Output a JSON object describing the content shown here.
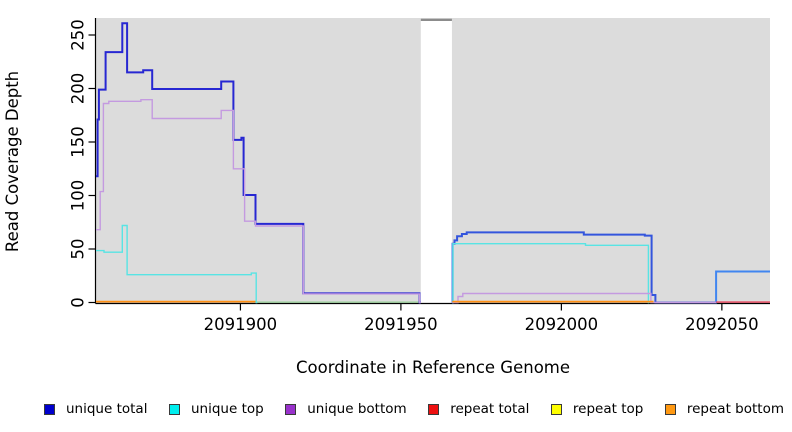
{
  "chart_data": {
    "type": "line",
    "title": "",
    "xlabel": "Coordinate in Reference Genome",
    "ylabel": "Read Coverage Depth",
    "xlim": [
      2091855,
      2092065
    ],
    "ylim": [
      0,
      266
    ],
    "x_ticks": [
      2091900,
      2091950,
      2092000,
      2092050
    ],
    "y_ticks": [
      0,
      50,
      100,
      150,
      200,
      250
    ],
    "plot_background": "#dcdcdc",
    "gap_region": {
      "x_start": 2091956.2,
      "x_end": 2091965.9,
      "top_bar_color": "#8c8c8c"
    },
    "legend_position": "bottom",
    "grid": false,
    "legend": [
      {
        "label": "unique total",
        "color": "#0000cd"
      },
      {
        "label": "unique top",
        "color": "#00eeee"
      },
      {
        "label": "unique bottom",
        "color": "#9932cc"
      },
      {
        "label": "repeat total",
        "color": "#ee1111"
      },
      {
        "label": "repeat top",
        "color": "#ffff00"
      },
      {
        "label": "repeat bottom",
        "color": "#ff9912"
      }
    ],
    "series": [
      {
        "name": "baseline-green",
        "legend": null,
        "color": "#96cf96",
        "width": 1.3,
        "steps": [
          [
            2091904.7,
            0.4
          ]
        ],
        "end": 2091956.2
      },
      {
        "name": "unique-total-left",
        "legend": "unique total",
        "color": "#2727d2",
        "width": 2,
        "steps": [
          [
            2091855,
            118
          ],
          [
            2091855.5,
            171
          ],
          [
            2091855.9,
            199
          ],
          [
            2091858,
            234
          ],
          [
            2091863.2,
            261
          ],
          [
            2091864.7,
            215
          ],
          [
            2091869.7,
            217
          ],
          [
            2091872.5,
            199.5
          ],
          [
            2091894,
            206.5
          ],
          [
            2091897.8,
            152
          ],
          [
            2091900.3,
            154
          ],
          [
            2091901,
            100.5
          ],
          [
            2091904.7,
            73.5
          ],
          [
            2091919.6,
            8.5
          ],
          [
            2091955.8,
            0
          ]
        ],
        "end": 2091956.2
      },
      {
        "name": "unique-total-right",
        "legend": "unique total",
        "color": "#3355dd",
        "width": 2,
        "steps": [
          [
            2091965.9,
            0
          ],
          [
            2091966.1,
            55
          ],
          [
            2091966.7,
            58
          ],
          [
            2091967.5,
            62
          ],
          [
            2091969,
            64
          ],
          [
            2091970.5,
            65.5
          ],
          [
            2092007,
            63.5
          ],
          [
            2092026,
            62.5
          ],
          [
            2092028.1,
            7
          ],
          [
            2092029.3,
            0
          ]
        ],
        "end": 2092048.2
      },
      {
        "name": "unique-total-far-right",
        "legend": "unique total",
        "color": "#4186f0",
        "width": 2,
        "steps": [
          [
            2092048.0,
            0
          ],
          [
            2092048.2,
            29
          ]
        ],
        "end": 2092065
      },
      {
        "name": "unique-top-left",
        "legend": "unique top",
        "color": "#58e4e4",
        "width": 1.4,
        "steps": [
          [
            2091855,
            48.5
          ],
          [
            2091857.5,
            47
          ],
          [
            2091863.2,
            72
          ],
          [
            2091864.7,
            26
          ],
          [
            2091903.4,
            27.5
          ],
          [
            2091904.9,
            0
          ]
        ],
        "end": 2091905.3
      },
      {
        "name": "unique-top-right",
        "legend": "unique top",
        "color": "#58e4e4",
        "width": 1.4,
        "steps": [
          [
            2091966,
            0
          ],
          [
            2091966.2,
            55
          ],
          [
            2092007.5,
            53.5
          ],
          [
            2092027.1,
            0
          ]
        ],
        "end": 2092027.4
      },
      {
        "name": "unique-bottom-left",
        "legend": "unique bottom",
        "color": "#c49ae0",
        "width": 1.4,
        "steps": [
          [
            2091855,
            68
          ],
          [
            2091856.3,
            103.6
          ],
          [
            2091857.3,
            186
          ],
          [
            2091859,
            188
          ],
          [
            2091869,
            189.5
          ],
          [
            2091872.5,
            172
          ],
          [
            2091894,
            179.5
          ],
          [
            2091897.8,
            125
          ],
          [
            2091901.3,
            76
          ],
          [
            2091904.7,
            71.5
          ],
          [
            2091919.6,
            8
          ],
          [
            2091955.8,
            0
          ]
        ],
        "end": 2091956.2
      },
      {
        "name": "unique-bottom-right",
        "legend": "unique bottom",
        "color": "#c49ae0",
        "width": 1.4,
        "steps": [
          [
            2091966,
            0
          ],
          [
            2091967.8,
            5.6
          ],
          [
            2091969.3,
            8.4
          ],
          [
            2092027.9,
            0
          ]
        ],
        "end": 2092048.2
      },
      {
        "name": "repeat-total-right",
        "legend": "repeat total",
        "color": "#e8415a",
        "width": 1.4,
        "steps": [
          [
            2092048.2,
            0.4
          ]
        ],
        "end": 2092065
      },
      {
        "name": "repeat-bottom-left",
        "legend": "repeat bottom",
        "color": "#ff9015",
        "width": 1.8,
        "steps": [
          [
            2091855,
            0.8
          ]
        ],
        "end": 2091904.7
      },
      {
        "name": "repeat-bottom-right",
        "legend": "repeat bottom",
        "color": "#ff9015",
        "width": 1.8,
        "steps": [
          [
            2091966,
            0.8
          ]
        ],
        "end": 2092028.7
      }
    ]
  }
}
